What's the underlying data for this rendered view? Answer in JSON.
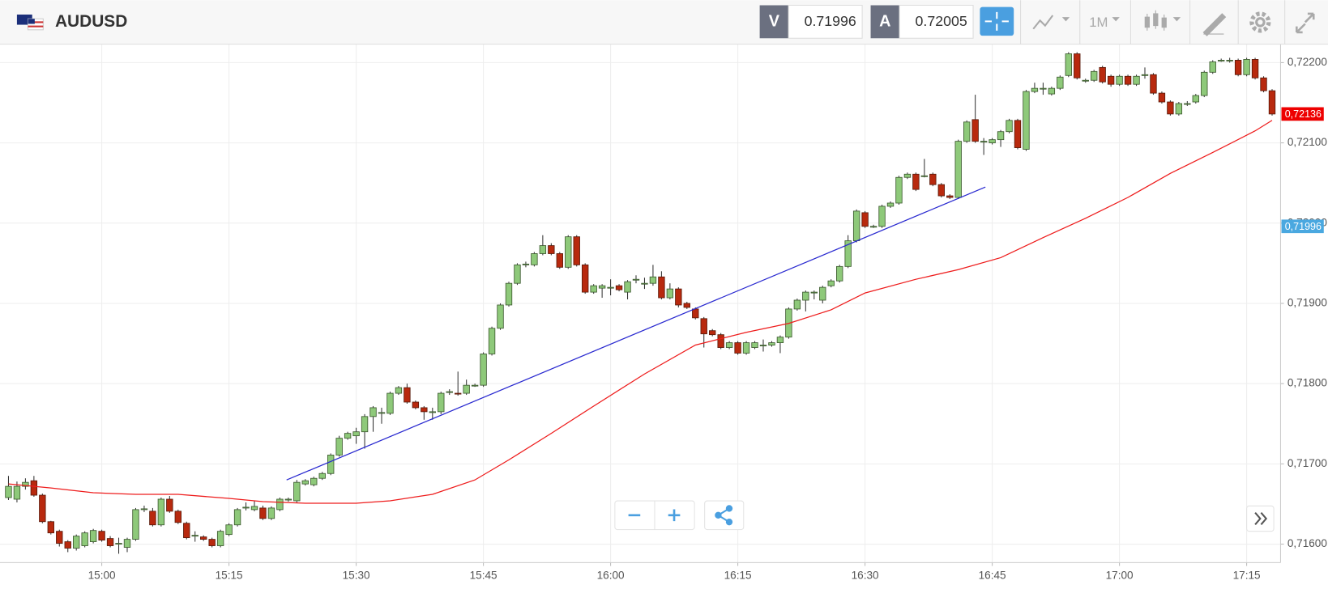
{
  "header": {
    "symbol": "AUDUSD",
    "bid_label": "V",
    "bid": 0.71996,
    "ask_label": "A",
    "ask": 0.72005,
    "timeframe": "1M"
  },
  "chart_data": {
    "type": "candlestick",
    "up_color": "#8ec97a",
    "down_color": "#b8290e",
    "xlim": [
      -1,
      150
    ],
    "ylim": [
      0.71577,
      0.72223
    ],
    "grid": true,
    "xticks": [
      {
        "value": 11,
        "label": "15:00"
      },
      {
        "value": 26,
        "label": "15:15"
      },
      {
        "value": 41,
        "label": "15:30"
      },
      {
        "value": 56,
        "label": "15:45"
      },
      {
        "value": 71,
        "label": "16:00"
      },
      {
        "value": 86,
        "label": "16:15"
      },
      {
        "value": 101,
        "label": "16:30"
      },
      {
        "value": 116,
        "label": "16:45"
      },
      {
        "value": 131,
        "label": "17:00"
      },
      {
        "value": 146,
        "label": "17:15"
      }
    ],
    "yticks": [
      {
        "value": 0.716,
        "label": "0,71600"
      },
      {
        "value": 0.717,
        "label": "0,71700"
      },
      {
        "value": 0.718,
        "label": "0,71800"
      },
      {
        "value": 0.719,
        "label": "0,71900"
      },
      {
        "value": 0.72,
        "label": "0,72000"
      },
      {
        "value": 0.721,
        "label": "0,72100"
      },
      {
        "value": 0.722,
        "label": "0,72200"
      }
    ],
    "open": [
      0.71658,
      0.71656,
      0.71672,
      0.71679,
      0.71661,
      0.71628,
      0.71616,
      0.71603,
      0.71595,
      0.71598,
      0.71603,
      0.71616,
      0.71607,
      0.716,
      0.71596,
      0.71606,
      0.71643,
      0.71641,
      0.71624,
      0.71656,
      0.71641,
      0.71626,
      0.7161,
      0.71609,
      0.71606,
      0.71598,
      0.71612,
      0.71624,
      0.71645,
      0.71643,
      0.71645,
      0.71632,
      0.71643,
      0.71655,
      0.71654,
      0.71675,
      0.71674,
      0.71682,
      0.71688,
      0.71711,
      0.71732,
      0.71735,
      0.7174,
      0.71759,
      0.71763,
      0.71763,
      0.71788,
      0.71795,
      0.71777,
      0.7177,
      0.71764,
      0.71765,
      0.71789,
      0.71788,
      0.71788,
      0.71798,
      0.71798,
      0.71837,
      0.71869,
      0.71898,
      0.71925,
      0.71948,
      0.71948,
      0.71962,
      0.71972,
      0.71962,
      0.71945,
      0.71983,
      0.71948,
      0.71914,
      0.71919,
      0.7192,
      0.71922,
      0.71914,
      0.7193,
      0.71925,
      0.71925,
      0.71933,
      0.71907,
      0.71918,
      0.719,
      0.71893,
      0.71881,
      0.71866,
      0.71861,
      0.71845,
      0.71851,
      0.71838,
      0.71845,
      0.71848,
      0.71848,
      0.71851,
      0.71858,
      0.71893,
      0.71904,
      0.71914,
      0.71904,
      0.71922,
      0.71928,
      0.71946,
      0.71978,
      0.72013,
      0.71996,
      0.71996,
      0.72021,
      0.72025,
      0.72057,
      0.72061,
      0.72059,
      0.72061,
      0.72048,
      0.72034,
      0.72032,
      0.72102,
      0.72129,
      0.72102,
      0.721,
      0.72104,
      0.72114,
      0.72128,
      0.72092,
      0.72164,
      0.72168,
      0.72161,
      0.72168,
      0.72184,
      0.72211,
      0.72178,
      0.72178,
      0.72194,
      0.72183,
      0.72173,
      0.72183,
      0.72173,
      0.72185,
      0.72185,
      0.72162,
      0.72151,
      0.72136,
      0.72149,
      0.72151,
      0.72159,
      0.72188,
      0.72203,
      0.72203,
      0.72203,
      0.72185,
      0.72204,
      0.72181,
      0.72165
    ],
    "high": [
      0.71685,
      0.71678,
      0.71682,
      0.71685,
      0.71663,
      0.71629,
      0.71618,
      0.71605,
      0.71612,
      0.71616,
      0.71619,
      0.71618,
      0.7161,
      0.71608,
      0.71608,
      0.71645,
      0.71648,
      0.71645,
      0.71658,
      0.7166,
      0.71643,
      0.71628,
      0.71616,
      0.71611,
      0.71608,
      0.71618,
      0.71626,
      0.71645,
      0.71652,
      0.71654,
      0.71648,
      0.71647,
      0.71658,
      0.71658,
      0.7168,
      0.71681,
      0.71684,
      0.7169,
      0.71713,
      0.71735,
      0.7174,
      0.71745,
      0.71762,
      0.71772,
      0.7177,
      0.7179,
      0.71797,
      0.718,
      0.71779,
      0.71772,
      0.7177,
      0.7179,
      0.71793,
      0.71815,
      0.71805,
      0.718,
      0.71839,
      0.71871,
      0.719,
      0.71927,
      0.7195,
      0.71952,
      0.71964,
      0.71985,
      0.71975,
      0.71964,
      0.71985,
      0.71985,
      0.7195,
      0.71924,
      0.71924,
      0.7193,
      0.71924,
      0.71929,
      0.71935,
      0.71932,
      0.71948,
      0.7194,
      0.71925,
      0.7192,
      0.71902,
      0.71895,
      0.71883,
      0.71868,
      0.71863,
      0.71853,
      0.71853,
      0.71853,
      0.71853,
      0.71855,
      0.71853,
      0.7186,
      0.71895,
      0.71906,
      0.71916,
      0.71916,
      0.71922,
      0.7193,
      0.71948,
      0.71985,
      0.72017,
      0.72015,
      0.71998,
      0.72023,
      0.72027,
      0.72059,
      0.72063,
      0.72063,
      0.7208,
      0.72063,
      0.7205,
      0.72036,
      0.72104,
      0.72128,
      0.7216,
      0.72106,
      0.72106,
      0.72116,
      0.7213,
      0.7213,
      0.72166,
      0.72175,
      0.72175,
      0.7217,
      0.72184,
      0.72213,
      0.72213,
      0.7218,
      0.72191,
      0.72196,
      0.72185,
      0.72185,
      0.72185,
      0.72185,
      0.72194,
      0.72187,
      0.72164,
      0.72153,
      0.72151,
      0.72152,
      0.72161,
      0.7219,
      0.72203,
      0.72205,
      0.72206,
      0.72205,
      0.72206,
      0.72206,
      0.72183,
      0.72167
    ],
    "low": [
      0.71655,
      0.71652,
      0.71668,
      0.71659,
      0.71626,
      0.71612,
      0.71597,
      0.7159,
      0.71592,
      0.71596,
      0.71601,
      0.71603,
      0.71596,
      0.71588,
      0.7159,
      0.71604,
      0.7164,
      0.71622,
      0.71622,
      0.71639,
      0.71625,
      0.71606,
      0.71603,
      0.71604,
      0.71596,
      0.71596,
      0.7161,
      0.71622,
      0.71642,
      0.71641,
      0.7163,
      0.7163,
      0.71641,
      0.71653,
      0.71652,
      0.71673,
      0.71672,
      0.7168,
      0.71686,
      0.71709,
      0.7173,
      0.71725,
      0.71719,
      0.7174,
      0.7175,
      0.71761,
      0.71786,
      0.71775,
      0.71768,
      0.71755,
      0.71755,
      0.71762,
      0.71786,
      0.71785,
      0.71786,
      0.71796,
      0.71796,
      0.71835,
      0.71867,
      0.71896,
      0.71923,
      0.71945,
      0.71946,
      0.7196,
      0.7196,
      0.71943,
      0.71943,
      0.71946,
      0.71912,
      0.71912,
      0.71907,
      0.7191,
      0.71915,
      0.71905,
      0.71925,
      0.71918,
      0.71922,
      0.71905,
      0.71905,
      0.71895,
      0.71893,
      0.7188,
      0.71845,
      0.71859,
      0.71843,
      0.71843,
      0.71836,
      0.71836,
      0.71843,
      0.7184,
      0.71846,
      0.71838,
      0.71856,
      0.71891,
      0.7189,
      0.71905,
      0.719,
      0.7192,
      0.71926,
      0.71944,
      0.71976,
      0.71994,
      0.71994,
      0.71994,
      0.72019,
      0.72023,
      0.72055,
      0.7204,
      0.72057,
      0.72046,
      0.72032,
      0.7203,
      0.7203,
      0.721,
      0.721,
      0.72085,
      0.72098,
      0.72095,
      0.72112,
      0.72092,
      0.7209,
      0.72162,
      0.7216,
      0.72159,
      0.72166,
      0.72182,
      0.72179,
      0.72175,
      0.72176,
      0.72174,
      0.7217,
      0.72171,
      0.72171,
      0.72171,
      0.7218,
      0.7216,
      0.72149,
      0.72134,
      0.72134,
      0.72146,
      0.72149,
      0.72157,
      0.72186,
      0.72201,
      0.722,
      0.72183,
      0.72183,
      0.72179,
      0.72163,
      0.72134
    ],
    "close": [
      0.71672,
      0.71672,
      0.71677,
      0.71661,
      0.71628,
      0.71614,
      0.71601,
      0.71595,
      0.7161,
      0.71614,
      0.71617,
      0.71605,
      0.71598,
      0.71601,
      0.71606,
      0.71643,
      0.71644,
      0.71624,
      0.71656,
      0.71641,
      0.71627,
      0.71608,
      0.71611,
      0.71606,
      0.71598,
      0.71616,
      0.71624,
      0.71643,
      0.71646,
      0.71647,
      0.71632,
      0.71645,
      0.71656,
      0.71656,
      0.71677,
      0.71679,
      0.71682,
      0.71688,
      0.71711,
      0.71732,
      0.71738,
      0.7174,
      0.71759,
      0.7177,
      0.71764,
      0.71788,
      0.71795,
      0.71777,
      0.7177,
      0.71765,
      0.71765,
      0.71788,
      0.7179,
      0.71787,
      0.71798,
      0.71798,
      0.71837,
      0.71869,
      0.71898,
      0.71925,
      0.71948,
      0.71949,
      0.71962,
      0.71972,
      0.71962,
      0.71945,
      0.71983,
      0.71948,
      0.71914,
      0.71922,
      0.71922,
      0.7192,
      0.71917,
      0.71927,
      0.7193,
      0.71925,
      0.71933,
      0.71907,
      0.71918,
      0.71898,
      0.71895,
      0.71882,
      0.71862,
      0.71861,
      0.71845,
      0.71851,
      0.71838,
      0.71851,
      0.71851,
      0.71848,
      0.71851,
      0.71858,
      0.71893,
      0.71904,
      0.71914,
      0.71914,
      0.7192,
      0.71928,
      0.71946,
      0.71978,
      0.72015,
      0.71996,
      0.71996,
      0.72021,
      0.72025,
      0.72057,
      0.72061,
      0.72042,
      0.72059,
      0.72048,
      0.72034,
      0.72032,
      0.72102,
      0.72126,
      0.72102,
      0.72102,
      0.72104,
      0.72114,
      0.72128,
      0.72094,
      0.72164,
      0.72168,
      0.72168,
      0.72168,
      0.72182,
      0.72211,
      0.72181,
      0.72178,
      0.72189,
      0.72176,
      0.72173,
      0.72183,
      0.72173,
      0.72183,
      0.72185,
      0.72162,
      0.72151,
      0.72136,
      0.72149,
      0.72149,
      0.72159,
      0.72188,
      0.72201,
      0.72203,
      0.72203,
      0.72185,
      0.72204,
      0.72181,
      0.72165,
      0.72136
    ],
    "overlays": [
      {
        "type": "line",
        "color": "#ee1c1c",
        "x": [
          0,
          5,
          10,
          15,
          20,
          26,
          30,
          35,
          41,
          45,
          50,
          55,
          59,
          64,
          69,
          75,
          81,
          87,
          92,
          97,
          101,
          107,
          112,
          117,
          122,
          127,
          132,
          137,
          142,
          147,
          149
        ],
        "values": [
          0.71675,
          0.7167,
          0.71664,
          0.71662,
          0.71662,
          0.71657,
          0.71653,
          0.71651,
          0.71651,
          0.71654,
          0.71662,
          0.7168,
          0.71705,
          0.71738,
          0.71772,
          0.71812,
          0.71848,
          0.71864,
          0.71875,
          0.71892,
          0.71913,
          0.7193,
          0.71942,
          0.71957,
          0.71982,
          0.72006,
          0.72032,
          0.72062,
          0.72088,
          0.72115,
          0.72128
        ]
      },
      {
        "type": "line",
        "color": "#2a2ad0",
        "x": [
          32.8,
          115.2
        ],
        "values": [
          0.7168,
          0.72045
        ]
      }
    ],
    "price_tags": [
      {
        "value": 0.72136,
        "label": "0,72136",
        "color": "#ee0000"
      },
      {
        "value": 0.71996,
        "label": "0,71996",
        "color": "#4aa8e0"
      }
    ]
  }
}
